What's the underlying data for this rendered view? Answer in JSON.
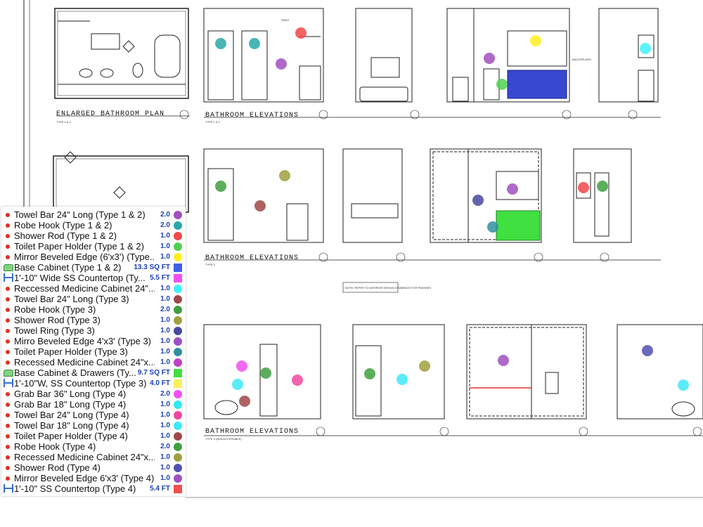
{
  "drawing": {
    "titles": {
      "plan": "ENLARGED BATHROOM PLAN",
      "elev_top": "BATHROOM ELEVATIONS",
      "elev_mid": "BATHROOM ELEVATIONS",
      "elev_bot": "BATHROOM ELEVATIONS"
    },
    "subtitles": {
      "plan": "TYPE 1 & 2",
      "elev_top": "TYPE 1 & 2",
      "elev_mid": "TYPE 3",
      "elev_bot": "TYPE 4 (ADA ACCESSIBLE)"
    },
    "note_box": "NOTE: REFER TO INTERIOR DESIGN DRAWINGS FOR FINISHES",
    "paint_label": "PAINT",
    "backsplash_label": "BACKSPLASH"
  },
  "legend": {
    "items": [
      {
        "icon": "count",
        "name": "Towel Bar 24\" Long (Type 1 & 2)",
        "qty": "2.0",
        "color": "#a050c0",
        "shape": "circle"
      },
      {
        "icon": "count",
        "name": "Robe Hook (Type 1 & 2)",
        "qty": "2.0",
        "color": "#2aa8a8",
        "shape": "circle"
      },
      {
        "icon": "count",
        "name": "Shower Rod (Type 1 & 2)",
        "qty": "1.0",
        "color": "#f04848",
        "shape": "circle"
      },
      {
        "icon": "count",
        "name": "Toilet Paper Holder (Type 1 & 2)",
        "qty": "1.0",
        "color": "#50d050",
        "shape": "circle"
      },
      {
        "icon": "count",
        "name": "Mirror Beveled Edge (6'x3') (Type...",
        "qty": "1.0",
        "color": "#ffee20",
        "shape": "circle"
      },
      {
        "icon": "area",
        "name": "Base Cabinet (Type 1 & 2)",
        "qty": "13.3 SQ FT",
        "color": "#4060e8",
        "shape": "square"
      },
      {
        "icon": "length",
        "name": "1'-10\" Wide SS Countertop (Ty...",
        "qty": "5.5 FT",
        "color": "#f050f0",
        "shape": "square"
      },
      {
        "icon": "count",
        "name": "Reccessed Medicine Cabinet 24\"...",
        "qty": "1.0",
        "color": "#40f0f8",
        "shape": "circle"
      },
      {
        "icon": "count",
        "name": "Towel Bar 24\" Long (Type 3)",
        "qty": "1.0",
        "color": "#a04848",
        "shape": "circle"
      },
      {
        "icon": "count",
        "name": "Robe Hook (Type 3)",
        "qty": "2.0",
        "color": "#40a040",
        "shape": "circle"
      },
      {
        "icon": "count",
        "name": "Shower Rod (Type 3)",
        "qty": "1.0",
        "color": "#a0a040",
        "shape": "circle"
      },
      {
        "icon": "count",
        "name": "Towel Ring (Type 3)",
        "qty": "1.0",
        "color": "#4848a0",
        "shape": "circle"
      },
      {
        "icon": "count",
        "name": "Mirro Beveled Edge 4'x3' (Type 3)",
        "qty": "1.0",
        "color": "#a050c0",
        "shape": "circle"
      },
      {
        "icon": "count",
        "name": "Toilet Paper Holder (Type 3)",
        "qty": "1.0",
        "color": "#3090a0",
        "shape": "circle"
      },
      {
        "icon": "count",
        "name": "Recessed Medicine Cabinet 24\"x...",
        "qty": "1.0",
        "color": "#c040c0",
        "shape": "circle"
      },
      {
        "icon": "area",
        "name": "Base Cabinet & Drawers (Ty...",
        "qty": "9.7 SQ FT",
        "color": "#40e040",
        "shape": "square"
      },
      {
        "icon": "length",
        "name": "1'-10\"W, SS Countertop (Type 3)",
        "qty": "4.0 FT",
        "color": "#f8f060",
        "shape": "square"
      },
      {
        "icon": "count",
        "name": "Grab Bar 36\" Long (Type 4)",
        "qty": "2.0",
        "color": "#f050f0",
        "shape": "circle"
      },
      {
        "icon": "count",
        "name": "Grab Bar 18\" Long (Type 4)",
        "qty": "1.0",
        "color": "#30e8f0",
        "shape": "circle"
      },
      {
        "icon": "count",
        "name": "Towel Bar 24\" Long (Type 4)",
        "qty": "1.0",
        "color": "#f048a0",
        "shape": "circle"
      },
      {
        "icon": "count",
        "name": "Towel Bar 18\" Long (Type 4)",
        "qty": "1.0",
        "color": "#40e8f8",
        "shape": "circle"
      },
      {
        "icon": "count",
        "name": "Toilet Paper Holder (Type 4)",
        "qty": "1.0",
        "color": "#a04848",
        "shape": "circle"
      },
      {
        "icon": "count",
        "name": "Robe Hook (Type 4)",
        "qty": "2.0",
        "color": "#40a040",
        "shape": "circle"
      },
      {
        "icon": "count",
        "name": "Recessed Medicine Cabinet 24\"x...",
        "qty": "1.0",
        "color": "#a0a040",
        "shape": "circle"
      },
      {
        "icon": "count",
        "name": "Shower Rod (Type 4)",
        "qty": "1.0",
        "color": "#5050b0",
        "shape": "circle"
      },
      {
        "icon": "count",
        "name": "Mirror Beveled Edge 6'x3' (Type 4)",
        "qty": "1.0",
        "color": "#a050c0",
        "shape": "circle"
      },
      {
        "icon": "length",
        "name": "1'-10\" SS Countertop (Type 4)",
        "qty": "5.4 FT",
        "color": "#f05050",
        "shape": "square"
      }
    ]
  },
  "markers": [
    {
      "color": "#2aa8a8"
    },
    {
      "color": "#2aa8a8"
    },
    {
      "color": "#f04848"
    },
    {
      "color": "#a050c0"
    },
    {
      "color": "#a050c0"
    },
    {
      "color": "#ffee20"
    },
    {
      "color": "#50d050"
    },
    {
      "color": "#40f0f8"
    },
    {
      "color": "#40a040"
    },
    {
      "color": "#a04848"
    },
    {
      "color": "#a0a040"
    },
    {
      "color": "#4848a0"
    },
    {
      "color": "#a050c0"
    },
    {
      "color": "#3090a0"
    },
    {
      "color": "#f04848"
    },
    {
      "color": "#40a040"
    },
    {
      "color": "#f050f0"
    },
    {
      "color": "#40a040"
    },
    {
      "color": "#40e8f8"
    },
    {
      "color": "#a04848"
    },
    {
      "color": "#f048a0"
    },
    {
      "color": "#40a040"
    },
    {
      "color": "#40e8f8"
    },
    {
      "color": "#a0a040"
    },
    {
      "color": "#a050c0"
    },
    {
      "color": "#5050b0"
    },
    {
      "color": "#40e8f8"
    }
  ]
}
